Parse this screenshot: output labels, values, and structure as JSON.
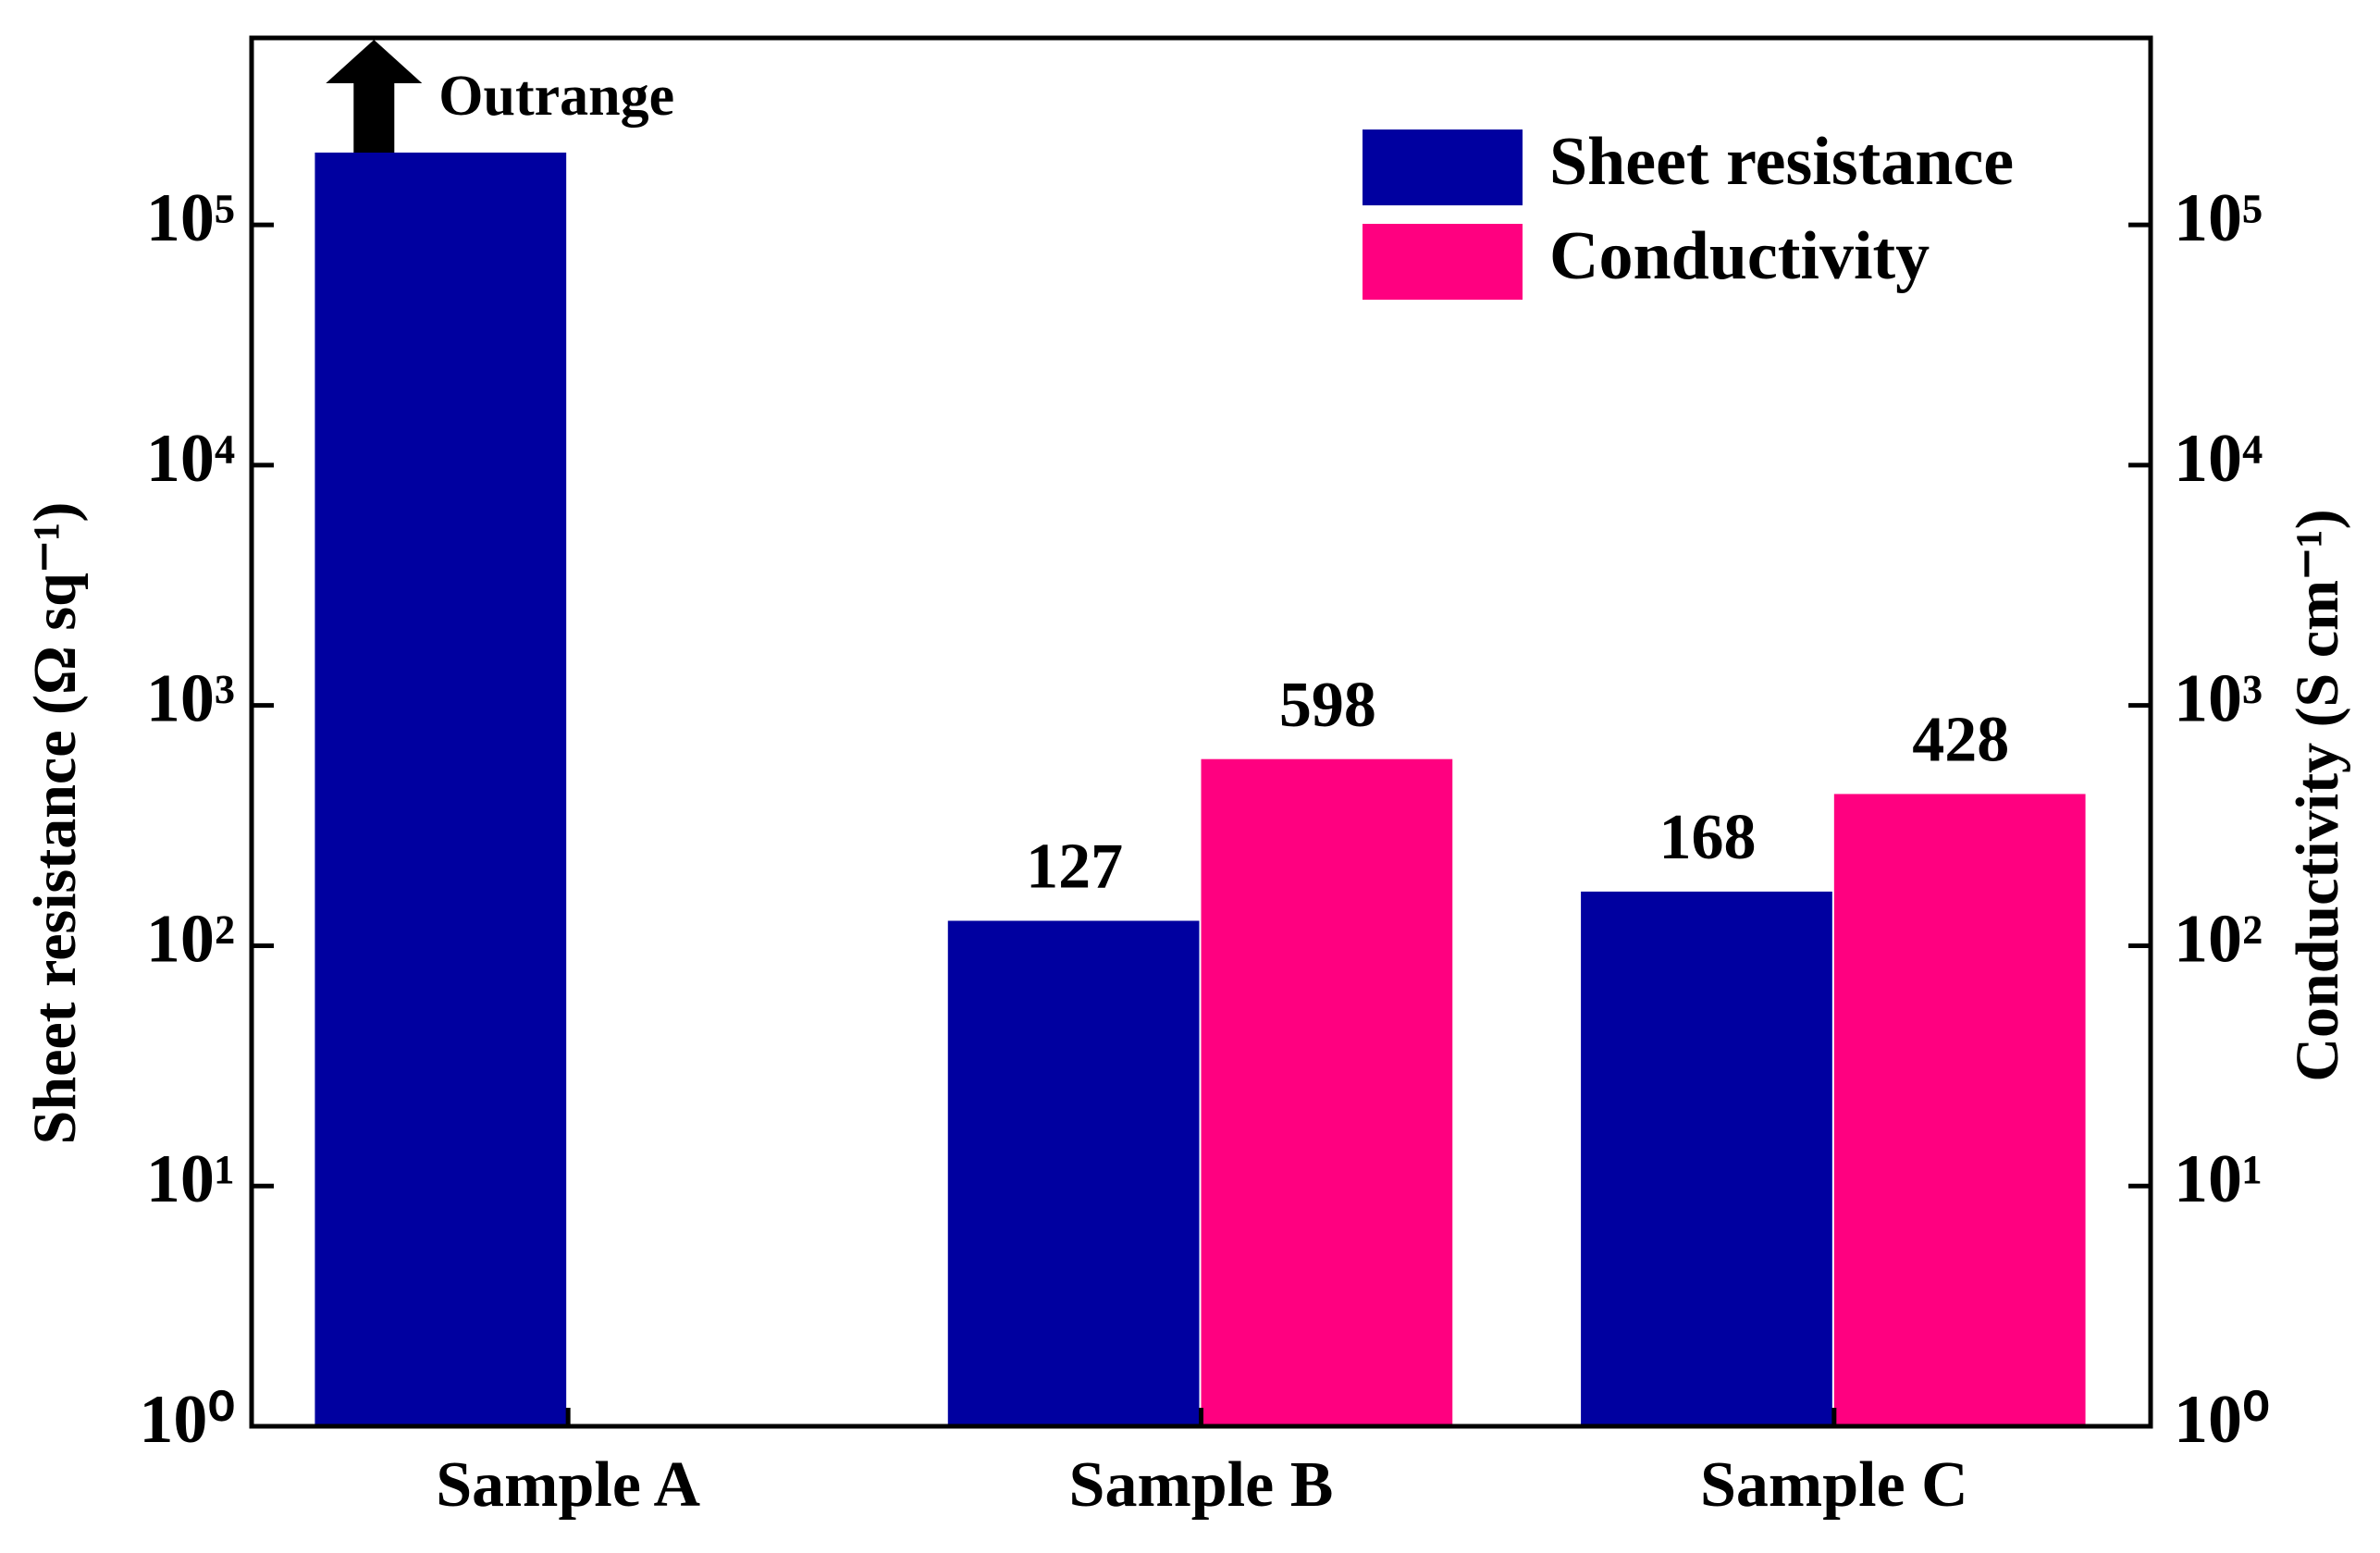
{
  "chart_data": {
    "type": "bar",
    "categories": [
      "Sample A",
      "Sample B",
      "Sample C"
    ],
    "series": [
      {
        "name": "Sheet resistance",
        "color": "#0000a0",
        "values": [
          200000,
          127,
          168
        ],
        "value_labels": [
          null,
          "127",
          "168"
        ]
      },
      {
        "name": "Conductivity",
        "color": "#ff0080",
        "axis": "y2",
        "values": [
          null,
          598,
          428
        ],
        "value_labels": [
          null,
          "598",
          "428"
        ]
      }
    ],
    "ylabel": "Sheet resistance (Ω sq⁻¹)",
    "y2label": "Conductivity (S cm⁻¹)",
    "log_scale": true,
    "ylim": [
      1,
      600000
    ],
    "y2lim": [
      1,
      600000
    ],
    "yticks": [
      {
        "value": 1,
        "label": "10⁰"
      },
      {
        "value": 10,
        "label": "10¹"
      },
      {
        "value": 100,
        "label": "10²"
      },
      {
        "value": 1000,
        "label": "10³"
      },
      {
        "value": 10000,
        "label": "10⁴"
      },
      {
        "value": 100000,
        "label": "10⁵"
      }
    ],
    "y2ticks": [
      {
        "value": 1,
        "label": "10⁰"
      },
      {
        "value": 10,
        "label": "10¹"
      },
      {
        "value": 100,
        "label": "10²"
      },
      {
        "value": 1000,
        "label": "10³"
      },
      {
        "value": 10000,
        "label": "10⁴"
      },
      {
        "value": 100000,
        "label": "10⁵"
      }
    ],
    "legend": "upper right",
    "annotations": [
      {
        "text": "Outrange"
      }
    ]
  }
}
